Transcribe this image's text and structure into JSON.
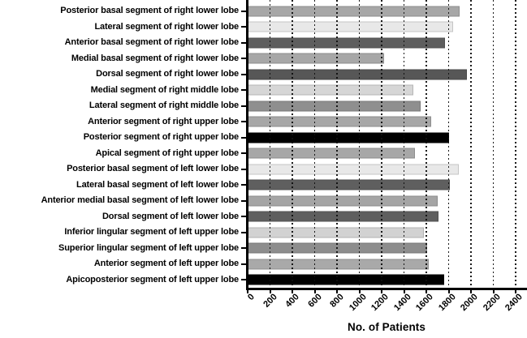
{
  "chart_data": {
    "type": "bar",
    "orientation": "horizontal",
    "title": "",
    "xlabel": "No. of Patients",
    "ylabel": "",
    "xlim": [
      0,
      2500
    ],
    "xticks": [
      0,
      200,
      400,
      600,
      800,
      1000,
      1200,
      1400,
      1600,
      1800,
      2000,
      2200,
      2400
    ],
    "grid": "vertical-dashed",
    "legend_position": "none",
    "categories": [
      "Posterior basal segment of right lower lobe",
      "Lateral segment of right lower lobe",
      "Anterior basal segment of right lower lobe",
      "Medial basal segment of right lower lobe",
      "Dorsal segment of right lower lobe",
      "Medial segment of right middle lobe",
      "Lateral segment of right middle lobe",
      "Anterior segment of right upper lobe",
      "Posterior segment of right upper lobe",
      "Apical segment of right upper lobe",
      "Posterior basal segment of left lower lobe",
      "Lateral basal segment of left lower lobe",
      "Anterior medial basal segment of left lower lobe",
      "Dorsal segment of left lower lobe",
      "Inferior lingular segment of left upper lobe",
      "Superior lingular segment of left upper lobe",
      "Anterior segment of left upper lobe",
      "Apicoposterior segment of left upper lobe"
    ],
    "values": [
      1900,
      1840,
      1770,
      1220,
      1960,
      1480,
      1550,
      1640,
      1800,
      1500,
      1890,
      1810,
      1700,
      1710,
      1580,
      1610,
      1620,
      1760
    ],
    "bar_colors": [
      "#a7a7a7",
      "#e8e8e8",
      "#5e5e5e",
      "#a7a7a7",
      "#575757",
      "#d6d6d6",
      "#8f8f8f",
      "#a7a7a7",
      "#000000",
      "#a7a7a7",
      "#e8e8e8",
      "#5f5f5f",
      "#a5a5a5",
      "#5f5f5f",
      "#d2d2d2",
      "#8d8d8d",
      "#a9a9a9",
      "#000000"
    ],
    "axis_color": "#000000",
    "gridline_color": "#1a1a1a",
    "text_color": "#000000"
  }
}
